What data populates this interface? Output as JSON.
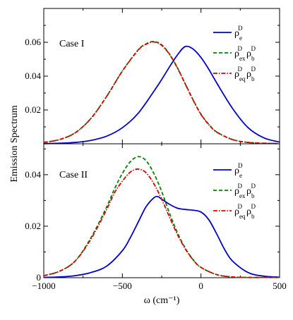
{
  "chart_data": [
    {
      "type": "line",
      "panel": "top",
      "annotation": "Case I",
      "xlim": [
        -1000,
        500
      ],
      "ylim": [
        0,
        0.08
      ],
      "yticks": [
        0.02,
        0.04,
        0.06
      ],
      "ytick_labels": [
        "0.02",
        "0.04",
        "0.06"
      ],
      "legend_position": "top-right",
      "series": [
        {
          "legend_key": "rho_e",
          "color": "#0000cc",
          "dash": "solid",
          "x": [
            -1000,
            -900,
            -800,
            -700,
            -600,
            -500,
            -400,
            -300,
            -250,
            -200,
            -150,
            -100,
            -50,
            0,
            50,
            100,
            200,
            300,
            400,
            500
          ],
          "y": [
            0.0001,
            0.0003,
            0.0008,
            0.002,
            0.0045,
            0.0095,
            0.018,
            0.031,
            0.038,
            0.0455,
            0.0525,
            0.0575,
            0.056,
            0.051,
            0.044,
            0.036,
            0.021,
            0.0095,
            0.0035,
            0.001
          ]
        },
        {
          "legend_key": "rho_ex_rho_b",
          "color": "#008000",
          "dash": "dashed",
          "x": [
            -1000,
            -900,
            -800,
            -700,
            -600,
            -500,
            -400,
            -350,
            -300,
            -250,
            -200,
            -150,
            -100,
            -50,
            0,
            50,
            100,
            200,
            300,
            400,
            500
          ],
          "y": [
            0.0008,
            0.0025,
            0.0065,
            0.015,
            0.028,
            0.043,
            0.0555,
            0.059,
            0.0605,
            0.0585,
            0.053,
            0.045,
            0.0355,
            0.026,
            0.0175,
            0.0115,
            0.007,
            0.0025,
            0.0008,
            0.0003,
            0.0001
          ]
        },
        {
          "legend_key": "rho_eq_rho_b",
          "color": "#dd0000",
          "dash": "dashdot",
          "x": [
            -1000,
            -900,
            -800,
            -700,
            -600,
            -500,
            -400,
            -350,
            -300,
            -250,
            -200,
            -150,
            -100,
            -50,
            0,
            50,
            100,
            200,
            300,
            400,
            500
          ],
          "y": [
            0.0008,
            0.0025,
            0.0065,
            0.015,
            0.028,
            0.043,
            0.0553,
            0.0588,
            0.0602,
            0.0582,
            0.0528,
            0.0448,
            0.0353,
            0.0258,
            0.0173,
            0.0113,
            0.0069,
            0.0025,
            0.0008,
            0.0003,
            0.0001
          ]
        }
      ]
    },
    {
      "type": "line",
      "panel": "bottom",
      "annotation": "Case II",
      "xlabel": "ω (cm⁻¹)",
      "xlim": [
        -1000,
        500
      ],
      "ylim": [
        0,
        0.052
      ],
      "xticks": [
        -1000,
        -500,
        0,
        500
      ],
      "xtick_labels": [
        "−1000",
        "−500",
        "0",
        "500"
      ],
      "yticks": [
        0,
        0.02,
        0.04
      ],
      "ytick_labels": [
        "0",
        "0.02",
        "0.04"
      ],
      "legend_position": "top-right",
      "series": [
        {
          "legend_key": "rho_e",
          "color": "#0000cc",
          "dash": "solid",
          "x": [
            -1000,
            -900,
            -800,
            -700,
            -600,
            -500,
            -450,
            -400,
            -350,
            -300,
            -275,
            -250,
            -200,
            -150,
            -100,
            -50,
            0,
            50,
            100,
            150,
            200,
            300,
            400,
            500
          ],
          "y": [
            0.0001,
            0.0003,
            0.0008,
            0.002,
            0.0045,
            0.0105,
            0.0155,
            0.0215,
            0.0275,
            0.031,
            0.0315,
            0.0305,
            0.0285,
            0.027,
            0.0265,
            0.0262,
            0.0255,
            0.0225,
            0.017,
            0.011,
            0.0065,
            0.002,
            0.0006,
            0.0002
          ]
        },
        {
          "legend_key": "rho_ex_rho_b",
          "color": "#008000",
          "dash": "dashed",
          "x": [
            -1000,
            -900,
            -800,
            -700,
            -600,
            -550,
            -500,
            -450,
            -400,
            -350,
            -300,
            -250,
            -200,
            -150,
            -100,
            -50,
            0,
            100,
            200,
            300,
            400,
            500
          ],
          "y": [
            0.0008,
            0.0025,
            0.0065,
            0.0155,
            0.0275,
            0.0345,
            0.0405,
            0.045,
            0.047,
            0.0455,
            0.0405,
            0.0335,
            0.025,
            0.0175,
            0.0115,
            0.007,
            0.004,
            0.0012,
            0.0003,
            0.0001,
            0.0001,
            0.0001
          ]
        },
        {
          "legend_key": "rho_eq_rho_b",
          "color": "#dd0000",
          "dash": "dashdot",
          "x": [
            -1000,
            -900,
            -800,
            -700,
            -600,
            -550,
            -500,
            -450,
            -400,
            -350,
            -300,
            -250,
            -200,
            -150,
            -100,
            -50,
            0,
            100,
            200,
            300,
            400,
            500
          ],
          "y": [
            0.0008,
            0.0025,
            0.0065,
            0.015,
            0.0265,
            0.033,
            0.0375,
            0.041,
            0.0422,
            0.0408,
            0.0365,
            0.0305,
            0.0235,
            0.0168,
            0.0112,
            0.0069,
            0.004,
            0.0012,
            0.0003,
            0.0001,
            0.0001,
            0.0001
          ]
        }
      ]
    }
  ],
  "ylabel": "Emission Spectrum",
  "xtick_labels_top": [
    "−1000",
    "−500",
    "0",
    "500"
  ],
  "ytick_labels_top": [
    "0.02",
    "0.04",
    "0.06"
  ],
  "legend": {
    "rho_e": {
      "base": "ρ",
      "sup": "D",
      "sub": "e"
    },
    "rho_ex_rho_b": {
      "base1": "ρ",
      "sup1": "D",
      "sub1": "ex",
      "base2": "ρ",
      "sup2": "D",
      "sub2": "b"
    },
    "rho_eq_rho_b": {
      "base1": "ρ",
      "sup1": "D",
      "sub1": "eq",
      "base2": "ρ",
      "sup2": "D",
      "sub2": "b"
    }
  }
}
